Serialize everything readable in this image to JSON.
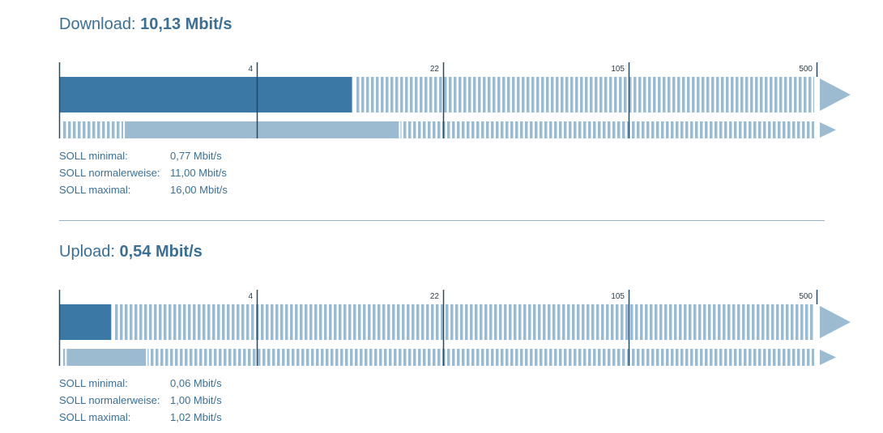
{
  "download": {
    "label": "Download:",
    "value": "10,13 Mbit/s",
    "scale_ticks": [
      "4",
      "22",
      "105",
      "500"
    ],
    "measured_fill_fraction": 0.388,
    "soll_range_fraction": [
      0.087,
      0.45
    ],
    "soll": [
      {
        "label": "SOLL minimal:",
        "value": "0,77 Mbit/s"
      },
      {
        "label": "SOLL normalerweise:",
        "value": "11,00 Mbit/s"
      },
      {
        "label": "SOLL maximal:",
        "value": "16,00 Mbit/s"
      }
    ]
  },
  "upload": {
    "label": "Upload:",
    "value": "0,54 Mbit/s",
    "scale_ticks": [
      "4",
      "22",
      "105",
      "500"
    ],
    "measured_fill_fraction": 0.069,
    "soll_range_fraction": [
      0.01,
      0.115
    ],
    "soll": [
      {
        "label": "SOLL minimal:",
        "value": "0,06 Mbit/s"
      },
      {
        "label": "SOLL normalerweise:",
        "value": "1,00 Mbit/s"
      },
      {
        "label": "SOLL maximal:",
        "value": "1,02 Mbit/s"
      }
    ]
  },
  "colors": {
    "dark_bar": "#3b78a6",
    "light_bar": "#9dbbd0",
    "stripe_gap": "#ffffff",
    "tick_line": "#234a66",
    "text": "#3b6f95"
  }
}
